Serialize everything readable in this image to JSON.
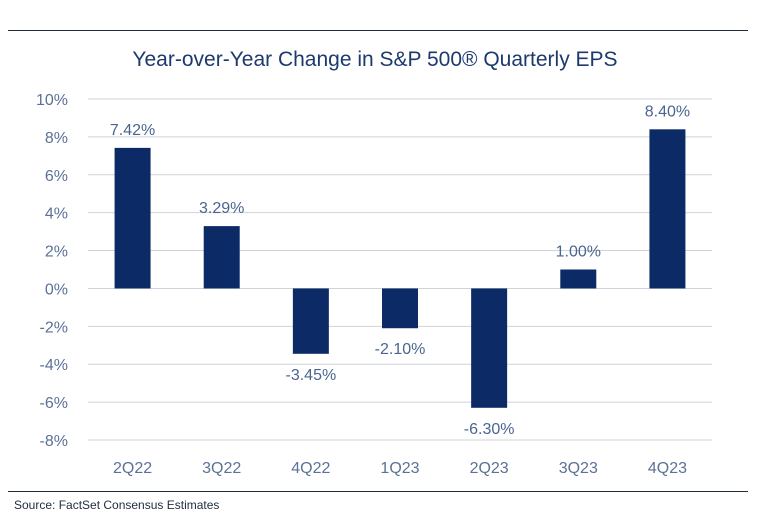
{
  "chart_data": {
    "type": "bar",
    "title": "Year-over-Year Change in S&P 500® Quarterly EPS",
    "categories": [
      "2Q22",
      "3Q22",
      "4Q22",
      "1Q23",
      "2Q23",
      "3Q23",
      "4Q23"
    ],
    "values": [
      7.42,
      3.29,
      -3.45,
      -2.1,
      -6.3,
      1.0,
      8.4
    ],
    "data_labels": [
      "7.42%",
      "3.29%",
      "-3.45%",
      "-2.10%",
      "-6.30%",
      "1.00%",
      "8.40%"
    ],
    "ylim": [
      -8,
      10
    ],
    "yticks": [
      10,
      8,
      6,
      4,
      2,
      0,
      -2,
      -4,
      -6,
      -8
    ],
    "ytick_labels": [
      "10%",
      "8%",
      "6%",
      "4%",
      "2%",
      "0%",
      "-2%",
      "-4%",
      "-6%",
      "-8%"
    ],
    "grid": true,
    "bar_color": "#0c2a66",
    "xlabel": "",
    "ylabel": ""
  },
  "source": "Source: FactSet Consensus Estimates"
}
